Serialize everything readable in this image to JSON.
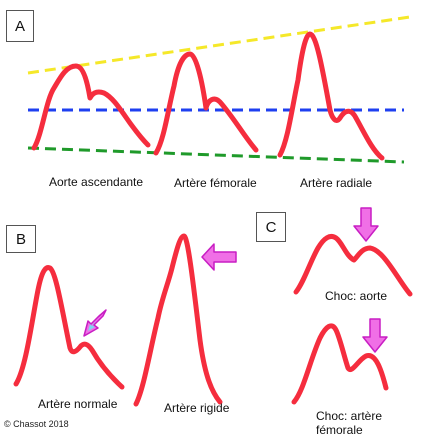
{
  "panels": {
    "a": {
      "letter": "A"
    },
    "b": {
      "letter": "B"
    },
    "c": {
      "letter": "C"
    }
  },
  "labels": {
    "aorte_ascendante": "Aorte ascendante",
    "artere_femorale": "Artère fémorale",
    "artere_radiale": "Artère radiale",
    "artere_normale": "Artère normale",
    "artere_rigide": "Artère rigide",
    "choc_aorte": "Choc: aorte",
    "choc_artere_femorale_line1": "Choc: artère",
    "choc_artere_femorale_line2": "fémorale"
  },
  "copyright": "© Chassot 2018",
  "colors": {
    "waveform": "#f52d3e",
    "systolic_line": "#f5e829",
    "mean_line": "#1e3ff0",
    "diastolic_line": "#1f9a2a",
    "arrow_fill": "#f06fe6",
    "arrow_stroke": "#c81ec3",
    "arrow_inner": "#7fd7ef"
  },
  "icons": {
    "reflected_wave_arrow": "arrow-icon"
  }
}
